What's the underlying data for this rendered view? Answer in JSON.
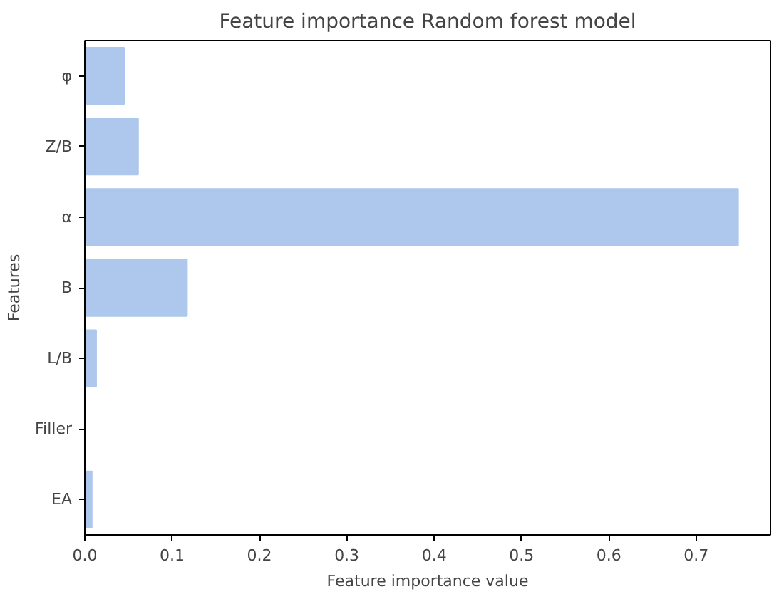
{
  "chart_data": {
    "type": "bar",
    "orientation": "horizontal",
    "title": "Feature importance Random forest model",
    "xlabel": "Feature importance value",
    "ylabel": "Features",
    "categories": [
      "φ",
      "Z/B",
      "α",
      "B",
      "L/B",
      "Filler",
      "EA"
    ],
    "values": [
      0.045,
      0.061,
      0.748,
      0.117,
      0.013,
      0,
      0.008
    ],
    "color": "#aec7ec",
    "xlim": [
      0,
      0.785
    ],
    "xticks": [
      {
        "value": 0,
        "label": "0.0"
      },
      0.1,
      0.2,
      0.3,
      0.4,
      0.5,
      0.6,
      0.7
    ],
    "grid": false
  }
}
